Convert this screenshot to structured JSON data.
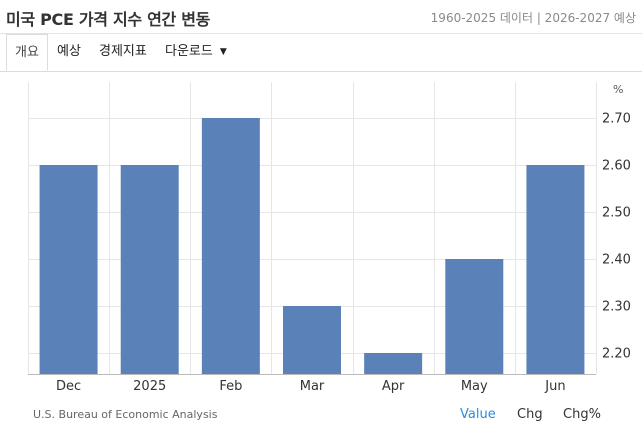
{
  "header": {
    "title": "미국 PCE 가격 지수 연간 변동",
    "subtitle": "1960-2025 데이터 | 2026-2027 예상"
  },
  "tabs": [
    {
      "label": "개요",
      "active": true
    },
    {
      "label": "예상",
      "active": false
    },
    {
      "label": "경제지표",
      "active": false
    },
    {
      "label": "다운로드",
      "active": false,
      "dropdown": true
    }
  ],
  "source": "U.S. Bureau of Economic Analysis",
  "view_toggles": [
    {
      "label": "Value",
      "selected": true
    },
    {
      "label": "Chg",
      "selected": false
    },
    {
      "label": "Chg%",
      "selected": false
    }
  ],
  "colors": {
    "bar": "#5b82b8",
    "grid": "#e6e6e6",
    "selected_toggle": "#2a8be0"
  },
  "chart_data": {
    "type": "bar",
    "categories": [
      "Dec",
      "2025",
      "Feb",
      "Mar",
      "Apr",
      "May",
      "Jun"
    ],
    "values": [
      2.6,
      2.6,
      2.7,
      2.3,
      2.2,
      2.4,
      2.6
    ],
    "unit": "%",
    "y_ticks": [
      "2.20",
      "2.30",
      "2.40",
      "2.50",
      "2.60",
      "2.70"
    ],
    "ylim": [
      2.16,
      2.75
    ],
    "grid": true,
    "y_axis_position": "right"
  }
}
